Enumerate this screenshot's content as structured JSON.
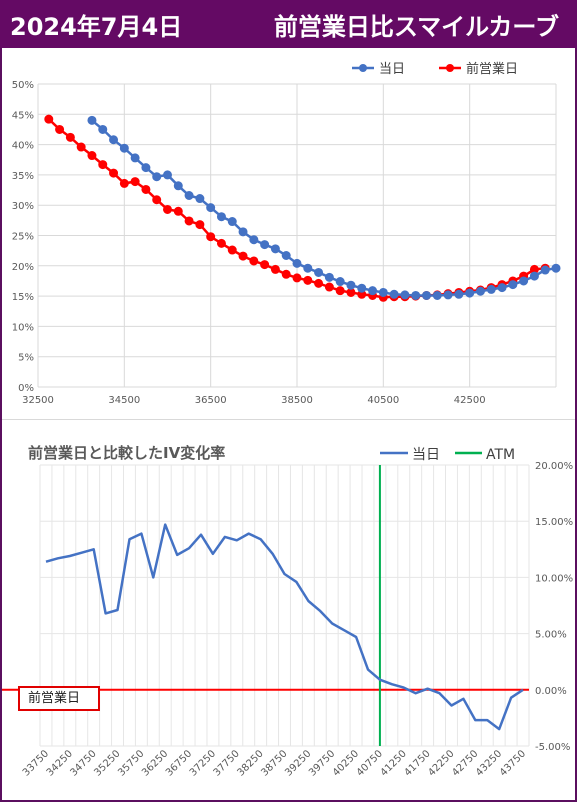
{
  "header": {
    "date": "2024年7月4日",
    "title": "前営業日比スマイルカーブ"
  },
  "colors": {
    "header_bg": "#640a64",
    "today": "#4472c4",
    "prev": "#ff0000",
    "atm": "#00b050",
    "zero_line": "#ff0000",
    "grid": "#d9d9d9"
  },
  "chart_data": [
    {
      "type": "line",
      "title": "",
      "legend": [
        "当日",
        "前営業日"
      ],
      "legend_position": "top-right",
      "grid": true,
      "xlim": [
        32500,
        44500
      ],
      "ylim": [
        0,
        50
      ],
      "x_ticks": [
        32500,
        34500,
        36500,
        38500,
        40500,
        42500
      ],
      "y_ticks": [
        "0%",
        "5%",
        "10%",
        "15%",
        "20%",
        "25%",
        "30%",
        "35%",
        "40%",
        "45%",
        "50%"
      ],
      "series": [
        {
          "name": "当日",
          "color": "#4472c4",
          "x": [
            33750,
            34000,
            34250,
            34500,
            34750,
            35000,
            35250,
            35500,
            35750,
            36000,
            36250,
            36500,
            36750,
            37000,
            37250,
            37500,
            37750,
            38000,
            38250,
            38500,
            38750,
            39000,
            39250,
            39500,
            39750,
            40000,
            40250,
            40500,
            40750,
            41000,
            41250,
            41500,
            41750,
            42000,
            42250,
            42500,
            42750,
            43000,
            43250,
            43500,
            43750,
            44000,
            44250,
            44500
          ],
          "y": [
            44,
            42.5,
            40.8,
            39.4,
            37.8,
            36.2,
            34.7,
            35,
            33.2,
            31.6,
            31.1,
            29.6,
            28.1,
            27.3,
            25.6,
            24.3,
            23.5,
            22.8,
            21.7,
            20.4,
            19.6,
            18.9,
            18.1,
            17.4,
            16.8,
            16.3,
            15.9,
            15.6,
            15.3,
            15.2,
            15.1,
            15.1,
            15.1,
            15.2,
            15.3,
            15.5,
            15.8,
            16.1,
            16.4,
            16.9,
            17.5,
            18.3,
            19.3,
            19.6
          ]
        },
        {
          "name": "前営業日",
          "color": "#ff0000",
          "x": [
            32750,
            33000,
            33250,
            33500,
            33750,
            34000,
            34250,
            34500,
            34750,
            35000,
            35250,
            35500,
            35750,
            36000,
            36250,
            36500,
            36750,
            37000,
            37250,
            37500,
            37750,
            38000,
            38250,
            38500,
            38750,
            39000,
            39250,
            39500,
            39750,
            40000,
            40250,
            40500,
            40750,
            41000,
            41250,
            41500,
            41750,
            42000,
            42250,
            42500,
            42750,
            43000,
            43250,
            43500,
            43750,
            44000,
            44250
          ],
          "y": [
            44.2,
            42.5,
            41.2,
            39.6,
            38.2,
            36.7,
            35.3,
            33.6,
            33.9,
            32.6,
            30.9,
            29.3,
            29,
            27.4,
            26.8,
            24.8,
            23.7,
            22.6,
            21.6,
            20.8,
            20.2,
            19.4,
            18.6,
            18,
            17.6,
            17.1,
            16.5,
            15.9,
            15.6,
            15.3,
            15.1,
            14.8,
            14.9,
            14.9,
            15,
            15.1,
            15.2,
            15.4,
            15.6,
            15.8,
            16,
            16.4,
            16.9,
            17.5,
            18.3,
            19.4,
            19.6
          ]
        }
      ]
    },
    {
      "type": "line",
      "title": "前営業日と比較したIV変化率",
      "legend": [
        "当日",
        "ATM"
      ],
      "legend_position": "top-right",
      "grid": true,
      "ylim": [
        -5,
        20
      ],
      "y_ticks": [
        "-5.00%",
        "0.00%",
        "5.00%",
        "10.00%",
        "15.00%",
        "20.00%"
      ],
      "categories": [
        "33750",
        "34000",
        "34250",
        "34500",
        "34750",
        "35000",
        "35250",
        "35500",
        "35750",
        "36000",
        "36250",
        "36500",
        "36750",
        "37000",
        "37250",
        "37500",
        "37750",
        "38000",
        "38250",
        "38500",
        "38750",
        "39000",
        "39250",
        "39500",
        "39750",
        "40000",
        "40250",
        "40500",
        "40750",
        "41000",
        "41250",
        "41500",
        "41750",
        "42000",
        "42250",
        "42500",
        "42750",
        "43000",
        "43250",
        "43500",
        "43750"
      ],
      "x_tick_labels": [
        "33750",
        "34250",
        "34750",
        "35250",
        "35750",
        "36250",
        "36750",
        "37250",
        "37750",
        "38250",
        "38750",
        "39250",
        "39750",
        "40250",
        "40750",
        "41250",
        "41750",
        "42250",
        "42750",
        "43250",
        "43750"
      ],
      "atm_category": "40750",
      "zero_line_label": "前営業日",
      "series": [
        {
          "name": "当日",
          "color": "#4472c4",
          "values": [
            11.4,
            11.7,
            11.9,
            12.2,
            12.5,
            6.8,
            7.1,
            13.4,
            13.9,
            10.0,
            14.7,
            12.0,
            12.6,
            13.8,
            12.1,
            13.6,
            13.3,
            13.9,
            13.4,
            12.1,
            10.3,
            9.6,
            7.9,
            7.0,
            5.9,
            5.3,
            4.7,
            1.8,
            0.9,
            0.5,
            0.2,
            -0.3,
            0.1,
            -0.3,
            -1.4,
            -0.8,
            -2.7,
            -2.7,
            -3.5,
            -0.7,
            0.0
          ]
        }
      ]
    }
  ]
}
